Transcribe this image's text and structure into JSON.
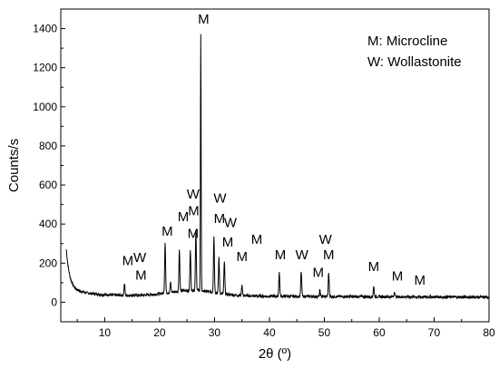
{
  "chart_data": {
    "type": "line",
    "xlabel": "2θ (º)",
    "ylabel": "Counts/s",
    "xlim": [
      2,
      80
    ],
    "ylim": [
      -100,
      1500
    ],
    "xticks": [
      10,
      20,
      30,
      40,
      50,
      60,
      70,
      80
    ],
    "yticks": [
      0,
      200,
      400,
      600,
      800,
      1000,
      1200,
      1400
    ],
    "grid": false,
    "line_color": "#000000",
    "legend": {
      "position": "top-right",
      "entries": [
        "M: Microcline",
        "W: Wollastonite"
      ]
    },
    "peaks": [
      {
        "x": 13.6,
        "y": 95
      },
      {
        "x": 21.0,
        "y": 310
      },
      {
        "x": 22.0,
        "y": 100
      },
      {
        "x": 23.6,
        "y": 270
      },
      {
        "x": 25.6,
        "y": 265
      },
      {
        "x": 26.6,
        "y": 370
      },
      {
        "x": 27.5,
        "y": 1370
      },
      {
        "x": 29.9,
        "y": 340
      },
      {
        "x": 30.8,
        "y": 230
      },
      {
        "x": 31.8,
        "y": 210
      },
      {
        "x": 35.0,
        "y": 90
      },
      {
        "x": 41.8,
        "y": 155
      },
      {
        "x": 45.8,
        "y": 155
      },
      {
        "x": 49.2,
        "y": 60
      },
      {
        "x": 50.8,
        "y": 150
      },
      {
        "x": 59.0,
        "y": 80
      },
      {
        "x": 62.8,
        "y": 55
      }
    ],
    "annotations": [
      {
        "text": "M",
        "x": 14.2,
        "y": 190
      },
      {
        "text": "W",
        "x": 16.4,
        "y": 205
      },
      {
        "text": "M",
        "x": 16.6,
        "y": 115
      },
      {
        "text": "M",
        "x": 21.4,
        "y": 340
      },
      {
        "text": "M",
        "x": 24.3,
        "y": 415
      },
      {
        "text": "M",
        "x": 26.1,
        "y": 330
      },
      {
        "text": "M",
        "x": 26.2,
        "y": 445
      },
      {
        "text": "W",
        "x": 26.1,
        "y": 530
      },
      {
        "text": "M",
        "x": 28.0,
        "y": 1425
      },
      {
        "text": "W",
        "x": 31.0,
        "y": 510
      },
      {
        "text": "M",
        "x": 30.9,
        "y": 405
      },
      {
        "text": "W",
        "x": 32.9,
        "y": 385
      },
      {
        "text": "M",
        "x": 32.4,
        "y": 285
      },
      {
        "text": "M",
        "x": 35.0,
        "y": 210
      },
      {
        "text": "M",
        "x": 37.7,
        "y": 300
      },
      {
        "text": "M",
        "x": 42.0,
        "y": 220
      },
      {
        "text": "W",
        "x": 45.9,
        "y": 220
      },
      {
        "text": "M",
        "x": 50.8,
        "y": 220
      },
      {
        "text": "W",
        "x": 50.2,
        "y": 300
      },
      {
        "text": "M",
        "x": 48.9,
        "y": 130
      },
      {
        "text": "M",
        "x": 59.0,
        "y": 160
      },
      {
        "text": "M",
        "x": 63.3,
        "y": 110
      },
      {
        "text": "M",
        "x": 67.4,
        "y": 90
      }
    ]
  }
}
